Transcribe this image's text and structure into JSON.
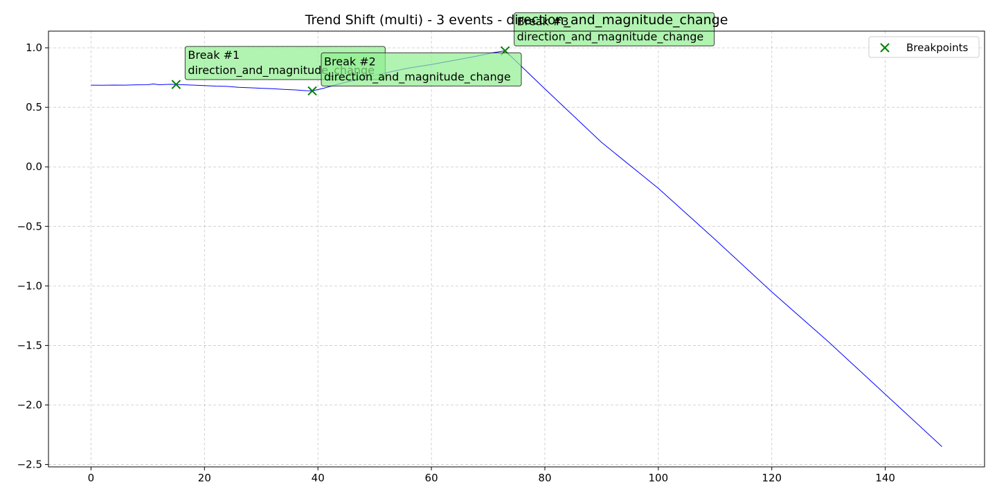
{
  "chart_data": {
    "type": "line",
    "title": "Trend Shift (multi) - 3 events - direction_and_magnitude_change",
    "xlabel": "",
    "ylabel": "",
    "xlim": [
      -7.5,
      157.5
    ],
    "ylim": [
      -2.52,
      1.14
    ],
    "x_ticks": [
      0,
      20,
      40,
      60,
      80,
      100,
      120,
      140
    ],
    "y_ticks": [
      1.0,
      0.5,
      0.0,
      -0.5,
      -1.0,
      -1.5,
      -2.0,
      -2.5
    ],
    "y_tick_labels": [
      "1.0",
      "0.5",
      "0.0",
      "−0.5",
      "−1.0",
      "−1.5",
      "−2.0",
      "−2.5"
    ],
    "grid": true,
    "legend_position": "top-right",
    "series": [
      {
        "color": "#0000ff",
        "points": [
          [
            0,
            0.686
          ],
          [
            2,
            0.685
          ],
          [
            4,
            0.687
          ],
          [
            6,
            0.686
          ],
          [
            8,
            0.689
          ],
          [
            10,
            0.69
          ],
          [
            11,
            0.696
          ],
          [
            12,
            0.69
          ],
          [
            14,
            0.693
          ],
          [
            15,
            0.692
          ],
          [
            17,
            0.688
          ],
          [
            20,
            0.683
          ],
          [
            22,
            0.678
          ],
          [
            24,
            0.676
          ],
          [
            26,
            0.668
          ],
          [
            28,
            0.664
          ],
          [
            30,
            0.66
          ],
          [
            32,
            0.656
          ],
          [
            34,
            0.65
          ],
          [
            36,
            0.646
          ],
          [
            38,
            0.64
          ],
          [
            39,
            0.638
          ],
          [
            41,
            0.66
          ],
          [
            44,
            0.7
          ],
          [
            48,
            0.745
          ],
          [
            52,
            0.79
          ],
          [
            56,
            0.83
          ],
          [
            60,
            0.86
          ],
          [
            64,
            0.895
          ],
          [
            68,
            0.93
          ],
          [
            71,
            0.96
          ],
          [
            73,
            0.975
          ],
          [
            80,
            0.655
          ],
          [
            90,
            0.205
          ],
          [
            100,
            -0.18
          ],
          [
            110,
            -0.61
          ],
          [
            120,
            -1.05
          ],
          [
            130,
            -1.47
          ],
          [
            140,
            -1.91
          ],
          [
            150,
            -2.35
          ]
        ]
      }
    ],
    "breakpoints": {
      "name": "Breakpoints",
      "color": "#008000",
      "points": [
        [
          15,
          0.692
        ],
        [
          39,
          0.638
        ],
        [
          73,
          0.975
        ]
      ]
    },
    "annotations": [
      {
        "line1": "Break #1",
        "line2": "direction_and_magnitude_change"
      },
      {
        "line1": "Break #2",
        "line2": "direction_and_magnitude_change"
      },
      {
        "line1": "Break #3",
        "line2": "direction_and_magnitude_change"
      }
    ]
  }
}
